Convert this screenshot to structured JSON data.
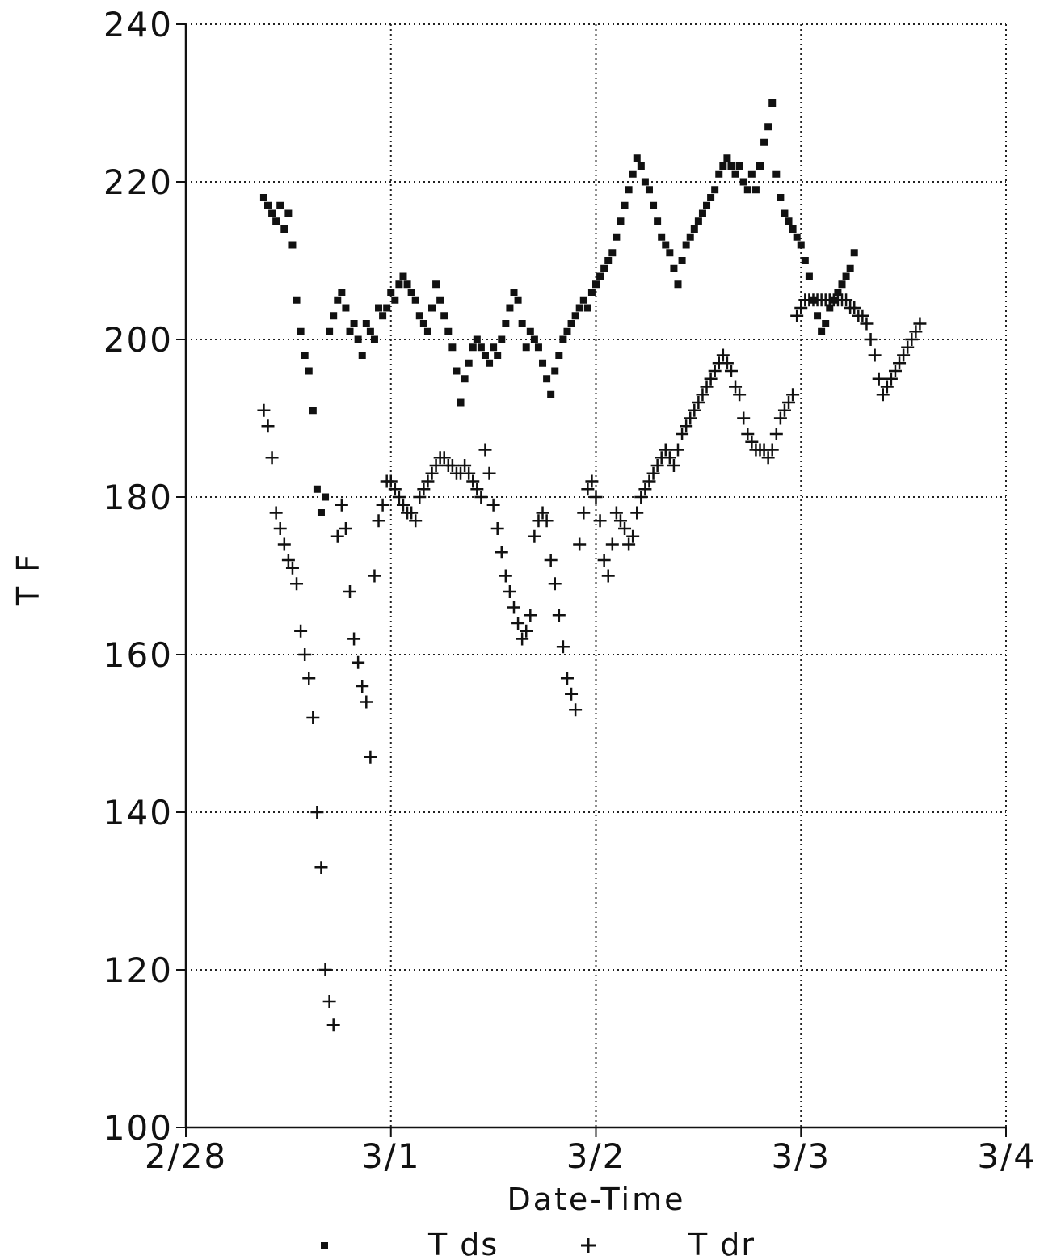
{
  "chart_data": {
    "type": "scatter",
    "xlabel": "Date-Time",
    "ylabel": "T F",
    "ylim": [
      100,
      240
    ],
    "yticks": [
      100,
      120,
      140,
      160,
      180,
      200,
      220,
      240
    ],
    "xlim": [
      0,
      4
    ],
    "xticks": [
      {
        "value": 0,
        "label": "2/28"
      },
      {
        "value": 1,
        "label": "3/1"
      },
      {
        "value": 2,
        "label": "3/2"
      },
      {
        "value": 3,
        "label": "3/3"
      },
      {
        "value": 4,
        "label": "3/4"
      }
    ],
    "grid": true,
    "legend_position": "bottom",
    "series": [
      {
        "name": "T ds",
        "marker": "square",
        "color": "#111111",
        "points": [
          [
            0.38,
            218
          ],
          [
            0.4,
            217
          ],
          [
            0.42,
            216
          ],
          [
            0.44,
            215
          ],
          [
            0.46,
            217
          ],
          [
            0.48,
            214
          ],
          [
            0.5,
            216
          ],
          [
            0.52,
            212
          ],
          [
            0.54,
            205
          ],
          [
            0.56,
            201
          ],
          [
            0.58,
            198
          ],
          [
            0.6,
            196
          ],
          [
            0.62,
            191
          ],
          [
            0.64,
            181
          ],
          [
            0.66,
            178
          ],
          [
            0.68,
            180
          ],
          [
            0.7,
            201
          ],
          [
            0.72,
            203
          ],
          [
            0.74,
            205
          ],
          [
            0.76,
            206
          ],
          [
            0.78,
            204
          ],
          [
            0.8,
            201
          ],
          [
            0.82,
            202
          ],
          [
            0.84,
            200
          ],
          [
            0.86,
            198
          ],
          [
            0.88,
            202
          ],
          [
            0.9,
            201
          ],
          [
            0.92,
            200
          ],
          [
            0.94,
            204
          ],
          [
            0.96,
            203
          ],
          [
            0.98,
            204
          ],
          [
            1.0,
            206
          ],
          [
            1.02,
            205
          ],
          [
            1.04,
            207
          ],
          [
            1.06,
            208
          ],
          [
            1.08,
            207
          ],
          [
            1.1,
            206
          ],
          [
            1.12,
            205
          ],
          [
            1.14,
            203
          ],
          [
            1.16,
            202
          ],
          [
            1.18,
            201
          ],
          [
            1.2,
            204
          ],
          [
            1.22,
            207
          ],
          [
            1.24,
            205
          ],
          [
            1.26,
            203
          ],
          [
            1.28,
            201
          ],
          [
            1.3,
            199
          ],
          [
            1.32,
            196
          ],
          [
            1.34,
            192
          ],
          [
            1.36,
            195
          ],
          [
            1.38,
            197
          ],
          [
            1.4,
            199
          ],
          [
            1.42,
            200
          ],
          [
            1.44,
            199
          ],
          [
            1.46,
            198
          ],
          [
            1.48,
            197
          ],
          [
            1.5,
            199
          ],
          [
            1.52,
            198
          ],
          [
            1.54,
            200
          ],
          [
            1.56,
            202
          ],
          [
            1.58,
            204
          ],
          [
            1.6,
            206
          ],
          [
            1.62,
            205
          ],
          [
            1.64,
            202
          ],
          [
            1.66,
            199
          ],
          [
            1.68,
            201
          ],
          [
            1.7,
            200
          ],
          [
            1.72,
            199
          ],
          [
            1.74,
            197
          ],
          [
            1.76,
            195
          ],
          [
            1.78,
            193
          ],
          [
            1.8,
            196
          ],
          [
            1.82,
            198
          ],
          [
            1.84,
            200
          ],
          [
            1.86,
            201
          ],
          [
            1.88,
            202
          ],
          [
            1.9,
            203
          ],
          [
            1.92,
            204
          ],
          [
            1.94,
            205
          ],
          [
            1.96,
            204
          ],
          [
            1.98,
            206
          ],
          [
            2.0,
            207
          ],
          [
            2.02,
            208
          ],
          [
            2.04,
            209
          ],
          [
            2.06,
            210
          ],
          [
            2.08,
            211
          ],
          [
            2.1,
            213
          ],
          [
            2.12,
            215
          ],
          [
            2.14,
            217
          ],
          [
            2.16,
            219
          ],
          [
            2.18,
            221
          ],
          [
            2.2,
            223
          ],
          [
            2.22,
            222
          ],
          [
            2.24,
            220
          ],
          [
            2.26,
            219
          ],
          [
            2.28,
            217
          ],
          [
            2.3,
            215
          ],
          [
            2.32,
            213
          ],
          [
            2.34,
            212
          ],
          [
            2.36,
            211
          ],
          [
            2.38,
            209
          ],
          [
            2.4,
            207
          ],
          [
            2.42,
            210
          ],
          [
            2.44,
            212
          ],
          [
            2.46,
            213
          ],
          [
            2.48,
            214
          ],
          [
            2.5,
            215
          ],
          [
            2.52,
            216
          ],
          [
            2.54,
            217
          ],
          [
            2.56,
            218
          ],
          [
            2.58,
            219
          ],
          [
            2.6,
            221
          ],
          [
            2.62,
            222
          ],
          [
            2.64,
            223
          ],
          [
            2.66,
            222
          ],
          [
            2.68,
            221
          ],
          [
            2.7,
            222
          ],
          [
            2.72,
            220
          ],
          [
            2.74,
            219
          ],
          [
            2.76,
            221
          ],
          [
            2.78,
            219
          ],
          [
            2.8,
            222
          ],
          [
            2.82,
            225
          ],
          [
            2.84,
            227
          ],
          [
            2.86,
            230
          ],
          [
            2.88,
            221
          ],
          [
            2.9,
            218
          ],
          [
            2.92,
            216
          ],
          [
            2.94,
            215
          ],
          [
            2.96,
            214
          ],
          [
            2.98,
            213
          ],
          [
            3.0,
            212
          ],
          [
            3.02,
            210
          ],
          [
            3.04,
            208
          ],
          [
            3.06,
            205
          ],
          [
            3.08,
            203
          ],
          [
            3.1,
            201
          ],
          [
            3.12,
            202
          ],
          [
            3.14,
            204
          ],
          [
            3.16,
            205
          ],
          [
            3.18,
            206
          ],
          [
            3.2,
            207
          ],
          [
            3.22,
            208
          ],
          [
            3.24,
            209
          ],
          [
            3.26,
            211
          ]
        ]
      },
      {
        "name": "T dr",
        "marker": "plus",
        "color": "#111111",
        "points": [
          [
            0.38,
            191
          ],
          [
            0.4,
            189
          ],
          [
            0.42,
            185
          ],
          [
            0.44,
            178
          ],
          [
            0.46,
            176
          ],
          [
            0.48,
            174
          ],
          [
            0.5,
            172
          ],
          [
            0.52,
            171
          ],
          [
            0.54,
            169
          ],
          [
            0.56,
            163
          ],
          [
            0.58,
            160
          ],
          [
            0.6,
            157
          ],
          [
            0.62,
            152
          ],
          [
            0.64,
            140
          ],
          [
            0.66,
            133
          ],
          [
            0.68,
            120
          ],
          [
            0.7,
            116
          ],
          [
            0.72,
            113
          ],
          [
            0.74,
            175
          ],
          [
            0.76,
            179
          ],
          [
            0.78,
            176
          ],
          [
            0.8,
            168
          ],
          [
            0.82,
            162
          ],
          [
            0.84,
            159
          ],
          [
            0.86,
            156
          ],
          [
            0.88,
            154
          ],
          [
            0.9,
            147
          ],
          [
            0.92,
            170
          ],
          [
            0.94,
            177
          ],
          [
            0.96,
            179
          ],
          [
            0.98,
            182
          ],
          [
            1.0,
            182
          ],
          [
            1.02,
            181
          ],
          [
            1.04,
            180
          ],
          [
            1.06,
            179
          ],
          [
            1.08,
            178
          ],
          [
            1.1,
            178
          ],
          [
            1.12,
            177
          ],
          [
            1.14,
            180
          ],
          [
            1.16,
            181
          ],
          [
            1.18,
            182
          ],
          [
            1.2,
            183
          ],
          [
            1.22,
            184
          ],
          [
            1.24,
            185
          ],
          [
            1.26,
            185
          ],
          [
            1.28,
            184
          ],
          [
            1.3,
            184
          ],
          [
            1.32,
            183
          ],
          [
            1.34,
            183
          ],
          [
            1.36,
            184
          ],
          [
            1.38,
            183
          ],
          [
            1.4,
            182
          ],
          [
            1.42,
            181
          ],
          [
            1.44,
            180
          ],
          [
            1.46,
            186
          ],
          [
            1.48,
            183
          ],
          [
            1.5,
            179
          ],
          [
            1.52,
            176
          ],
          [
            1.54,
            173
          ],
          [
            1.56,
            170
          ],
          [
            1.58,
            168
          ],
          [
            1.6,
            166
          ],
          [
            1.62,
            164
          ],
          [
            1.64,
            162
          ],
          [
            1.66,
            163
          ],
          [
            1.68,
            165
          ],
          [
            1.7,
            175
          ],
          [
            1.72,
            177
          ],
          [
            1.74,
            178
          ],
          [
            1.76,
            177
          ],
          [
            1.78,
            172
          ],
          [
            1.8,
            169
          ],
          [
            1.82,
            165
          ],
          [
            1.84,
            161
          ],
          [
            1.86,
            157
          ],
          [
            1.88,
            155
          ],
          [
            1.9,
            153
          ],
          [
            1.92,
            174
          ],
          [
            1.94,
            178
          ],
          [
            1.96,
            181
          ],
          [
            1.98,
            182
          ],
          [
            2.0,
            180
          ],
          [
            2.02,
            177
          ],
          [
            2.04,
            172
          ],
          [
            2.06,
            170
          ],
          [
            2.08,
            174
          ],
          [
            2.1,
            178
          ],
          [
            2.12,
            177
          ],
          [
            2.14,
            176
          ],
          [
            2.16,
            174
          ],
          [
            2.18,
            175
          ],
          [
            2.2,
            178
          ],
          [
            2.22,
            180
          ],
          [
            2.24,
            181
          ],
          [
            2.26,
            182
          ],
          [
            2.28,
            183
          ],
          [
            2.3,
            184
          ],
          [
            2.32,
            185
          ],
          [
            2.34,
            186
          ],
          [
            2.36,
            185
          ],
          [
            2.38,
            184
          ],
          [
            2.4,
            186
          ],
          [
            2.42,
            188
          ],
          [
            2.44,
            189
          ],
          [
            2.46,
            190
          ],
          [
            2.48,
            191
          ],
          [
            2.5,
            192
          ],
          [
            2.52,
            193
          ],
          [
            2.54,
            194
          ],
          [
            2.56,
            195
          ],
          [
            2.58,
            196
          ],
          [
            2.6,
            197
          ],
          [
            2.62,
            198
          ],
          [
            2.64,
            197
          ],
          [
            2.66,
            196
          ],
          [
            2.68,
            194
          ],
          [
            2.7,
            193
          ],
          [
            2.72,
            190
          ],
          [
            2.74,
            188
          ],
          [
            2.76,
            187
          ],
          [
            2.78,
            186
          ],
          [
            2.8,
            186
          ],
          [
            2.82,
            186
          ],
          [
            2.84,
            185
          ],
          [
            2.86,
            186
          ],
          [
            2.88,
            188
          ],
          [
            2.9,
            190
          ],
          [
            2.92,
            191
          ],
          [
            2.94,
            192
          ],
          [
            2.96,
            193
          ],
          [
            2.98,
            203
          ],
          [
            3.0,
            204
          ],
          [
            3.02,
            205
          ],
          [
            3.04,
            205
          ],
          [
            3.06,
            205
          ],
          [
            3.08,
            205
          ],
          [
            3.1,
            205
          ],
          [
            3.12,
            205
          ],
          [
            3.14,
            205
          ],
          [
            3.16,
            205
          ],
          [
            3.18,
            205
          ],
          [
            3.2,
            205
          ],
          [
            3.22,
            205
          ],
          [
            3.24,
            204
          ],
          [
            3.26,
            204
          ],
          [
            3.28,
            203
          ],
          [
            3.3,
            203
          ],
          [
            3.32,
            202
          ],
          [
            3.34,
            200
          ],
          [
            3.36,
            198
          ],
          [
            3.38,
            195
          ],
          [
            3.4,
            193
          ],
          [
            3.42,
            194
          ],
          [
            3.44,
            195
          ],
          [
            3.46,
            196
          ],
          [
            3.48,
            197
          ],
          [
            3.5,
            198
          ],
          [
            3.52,
            199
          ],
          [
            3.54,
            200
          ],
          [
            3.56,
            201
          ],
          [
            3.58,
            202
          ]
        ]
      }
    ]
  }
}
